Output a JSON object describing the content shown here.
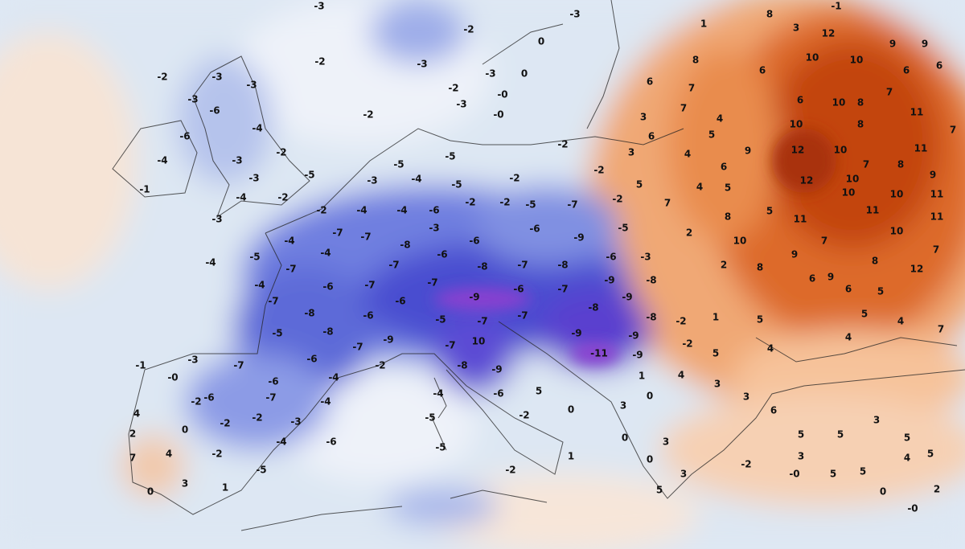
{
  "labels": [
    "-3",
    "-3",
    "-2",
    "0",
    "-2",
    "-3",
    "-3",
    "0",
    "-0",
    "-3",
    "-0",
    "-2",
    "-2",
    "-2",
    "-3",
    "-3",
    "-3",
    "-6",
    "-4",
    "-6",
    "-4",
    "-1",
    "-3",
    "-2",
    "-3",
    "-5",
    "-4",
    "-2",
    "-3",
    "-2",
    "-4",
    "-4",
    "-6",
    "-2",
    "-2",
    "-2",
    "-2",
    "-2",
    "-7",
    "-6",
    "-9",
    "-5",
    "-3",
    "-4",
    "-5",
    "-5",
    "-5",
    "-2",
    "-5",
    "-3",
    "-8",
    "-6",
    "-6",
    "-8",
    "-7",
    "-8",
    "-6",
    "-3",
    "-8",
    "-9",
    "-7",
    "-6",
    "-9",
    "-7",
    "-6",
    "-7",
    "-7",
    "-4",
    "-5",
    "-4",
    "-4",
    "-7",
    "-7",
    "-7",
    "-6",
    "-4",
    "-7",
    "-8",
    "-8",
    "-5",
    "-6",
    "-9",
    "-5",
    "-7",
    "-7",
    "-8",
    "-9",
    "-8",
    "-2",
    "-2",
    "-9",
    "-9",
    "-11",
    "-9",
    "10",
    "-7",
    "-7",
    "-6",
    "-2",
    "-8",
    "-9",
    "-4",
    "-4",
    "-7",
    "-6",
    "-3",
    "-0",
    "-1",
    "-6",
    "-7",
    "-3",
    "-2",
    "-2",
    "-2",
    "0",
    "-4",
    "-6",
    "-2",
    "4",
    "4",
    "2",
    "7",
    "3",
    "0",
    "1",
    "-5",
    "-4",
    "-5",
    "-5",
    "-6",
    "5",
    "-2",
    "0",
    "1",
    "-2",
    "3",
    "0",
    "1",
    "4",
    "0",
    "0",
    "3",
    "5",
    "3",
    "3",
    "3",
    "4",
    "6",
    "5",
    "5",
    "5",
    "3",
    "3",
    "5",
    "4",
    "5",
    "5",
    "-0",
    "-2",
    "0",
    "2",
    "-0",
    "5",
    "1",
    "5",
    "4",
    "5",
    "4",
    "7",
    "5",
    "6",
    "9",
    "8",
    "12",
    "7",
    "7",
    "9",
    "8",
    "6",
    "10",
    "8",
    "2",
    "2",
    "5",
    "11",
    "10",
    "11",
    "10",
    "10",
    "11",
    "11",
    "9",
    "12",
    "10",
    "7",
    "8",
    "11",
    "7",
    "11",
    "7",
    "8",
    "10",
    "10",
    "12",
    "10",
    "8",
    "6",
    "9",
    "6",
    "5",
    "4",
    "7",
    "4",
    "5",
    "4",
    "7",
    "3",
    "6",
    "3",
    "5",
    "6",
    "7",
    "8",
    "6",
    "10",
    "10",
    "12",
    "9",
    "9",
    "6",
    "6",
    "3",
    "8",
    "1",
    "-1"
  ]
}
